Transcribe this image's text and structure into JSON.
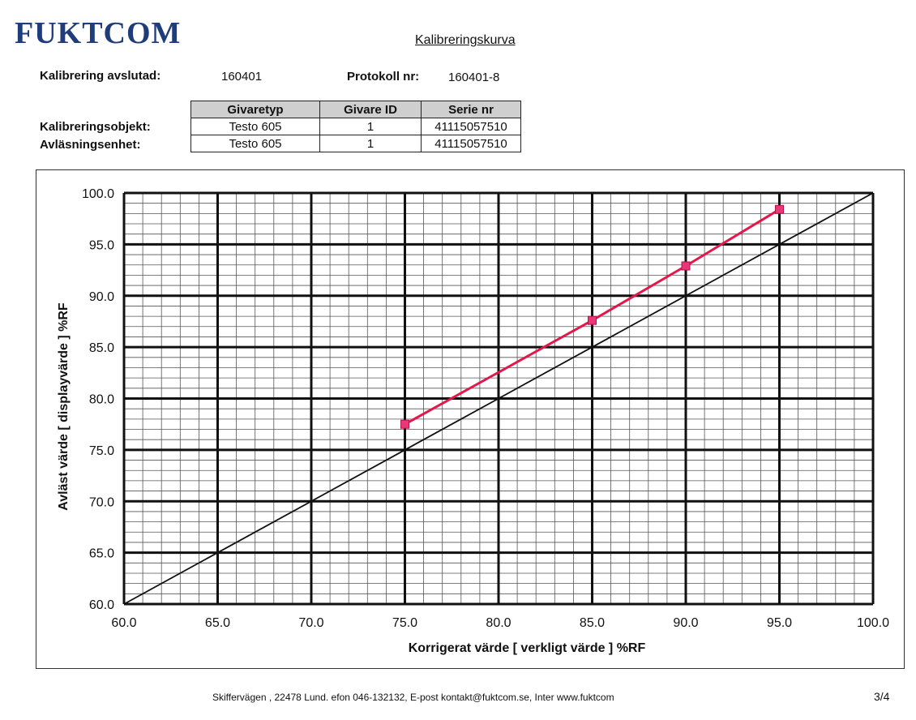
{
  "header": {
    "logo_text": "FUKTCOM",
    "title": "Kalibreringskurva"
  },
  "meta": {
    "completed_label": "Kalibrering avslutad:",
    "completed_value": "160401",
    "protocol_label": "Protokoll nr:",
    "protocol_value": "160401-8"
  },
  "table": {
    "headers": [
      "Givaretyp",
      "Givare ID",
      "Serie nr"
    ],
    "rows": [
      {
        "label": "Kalibreringsobjekt:",
        "cells": [
          "Testo 605",
          "1",
          "41115057510"
        ]
      },
      {
        "label": "Avläsningsenhet:",
        "cells": [
          "Testo 605",
          "1",
          "41115057510"
        ]
      }
    ]
  },
  "chart_data": {
    "type": "line",
    "title": "",
    "xlabel": "Korrigerat värde [ verkligt värde ] %RF",
    "ylabel": "Avläst värde [ displayvärde ] %RF",
    "xlim": [
      60,
      100
    ],
    "ylim": [
      60,
      100
    ],
    "x_ticks": [
      "60.0",
      "65.0",
      "70.0",
      "75.0",
      "80.0",
      "85.0",
      "90.0",
      "95.0",
      "100.0"
    ],
    "y_ticks": [
      "100.0",
      "95.0",
      "90.0",
      "85.0",
      "80.0",
      "75.0",
      "70.0",
      "65.0",
      "60.0"
    ],
    "grid": true,
    "series": [
      {
        "x": [
          75,
          85,
          90,
          95
        ],
        "y": [
          77.5,
          87.6,
          92.9,
          98.4
        ],
        "color": "#e3174a",
        "marker": "square"
      },
      {
        "x": [
          60,
          100
        ],
        "y": [
          60,
          100
        ],
        "color": "#111111",
        "marker": "none"
      }
    ]
  },
  "footer": {
    "text": "Skiffervägen , 22478 Lund. efon 046-132132, E-post kontakt@fuktcom.se, Inter www.fuktcom",
    "page": "3/4"
  }
}
